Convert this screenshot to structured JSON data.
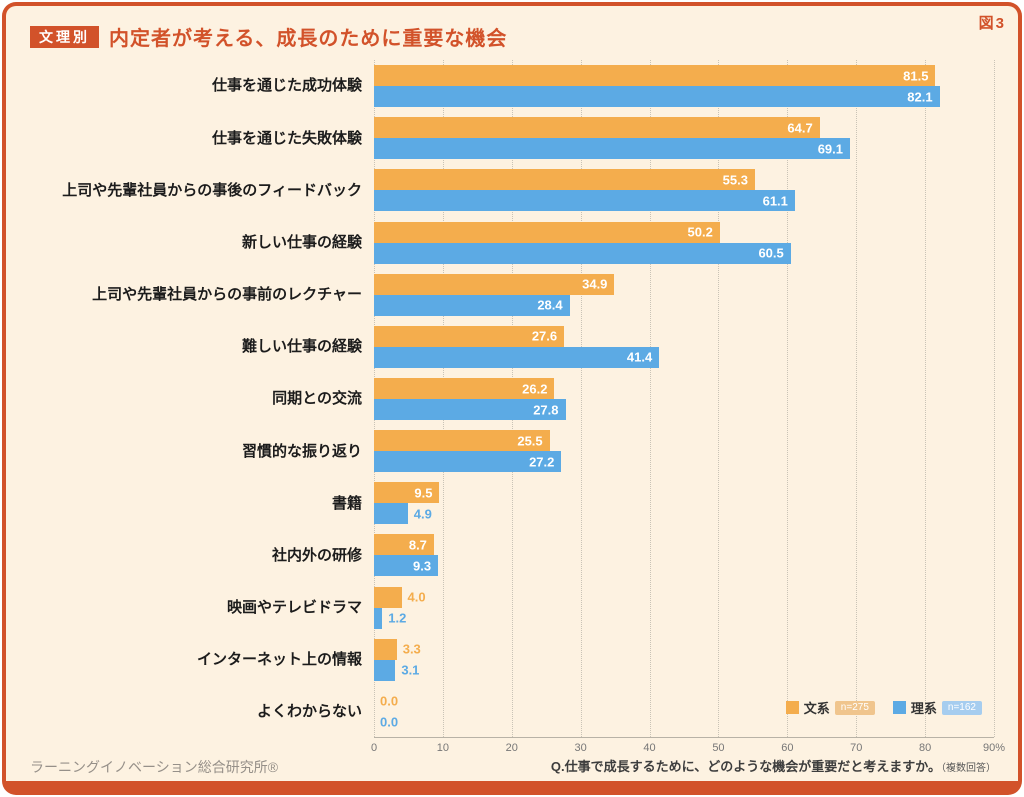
{
  "figure_label": "図3",
  "header": {
    "badge": "文理別",
    "title": "内定者が考える、成長のために重要な機会"
  },
  "chart_data": {
    "type": "bar",
    "orientation": "horizontal",
    "xlim": [
      0,
      90
    ],
    "ticks": [
      0,
      10,
      20,
      30,
      40,
      50,
      60,
      70,
      80,
      90
    ],
    "tick_labels": [
      "0",
      "10",
      "20",
      "30",
      "40",
      "50",
      "60",
      "70",
      "80",
      "90%"
    ],
    "grid": "dotted-vertical",
    "label_inside_min": 8,
    "categories": [
      "仕事を通じた成功体験",
      "仕事を通じた失敗体験",
      "上司や先輩社員からの事後のフィードバック",
      "新しい仕事の経験",
      "上司や先輩社員からの事前のレクチャー",
      "難しい仕事の経験",
      "同期との交流",
      "習慣的な振り返り",
      "書籍",
      "社内外の研修",
      "映画やテレビドラマ",
      "インターネット上の情報",
      "よくわからない"
    ],
    "series": [
      {
        "name": "文系",
        "n_label": "n=275",
        "color": "#f4ad4d",
        "tag_color": "#f0c58d",
        "values": [
          81.5,
          64.7,
          55.3,
          50.2,
          34.9,
          27.6,
          26.2,
          25.5,
          9.5,
          8.7,
          4.0,
          3.3,
          0.0
        ]
      },
      {
        "name": "理系",
        "n_label": "n=162",
        "color": "#5caae4",
        "tag_color": "#a6cdef",
        "values": [
          82.1,
          69.1,
          61.1,
          60.5,
          28.4,
          41.4,
          27.8,
          27.2,
          4.9,
          9.3,
          1.2,
          3.1,
          0.0
        ]
      }
    ]
  },
  "footer": {
    "source": "ラーニングイノベーション総合研究所®",
    "question": "Q.仕事で成長するために、どのような機会が重要だと考えますか。",
    "note": "（複数回答）"
  },
  "colors": {
    "background": "#fdf2e1",
    "frame": "#d2522a",
    "accent": "#d2522a"
  }
}
